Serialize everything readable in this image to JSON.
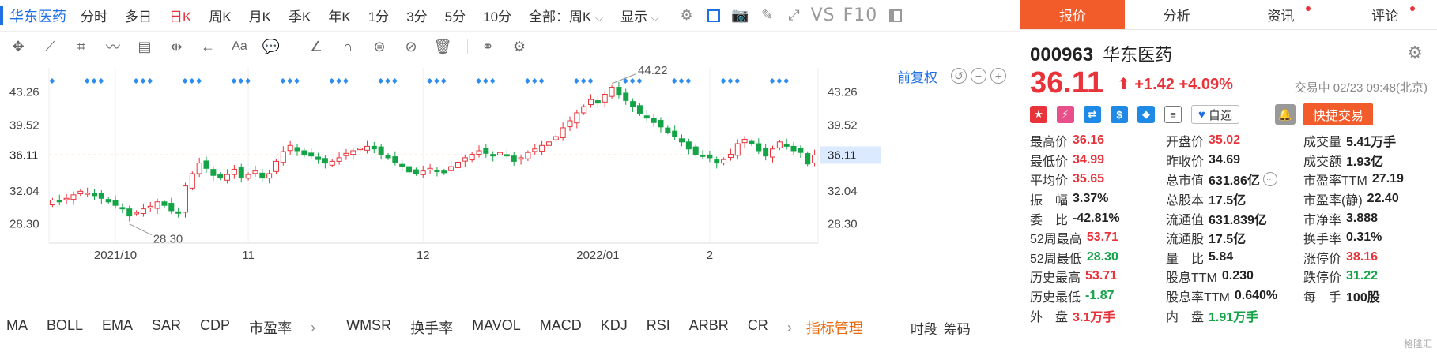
{
  "topbar": {
    "title": "华东医药",
    "timeframes": [
      {
        "label": "分时",
        "active": false
      },
      {
        "label": "多日",
        "active": false
      },
      {
        "label": "日K",
        "active": true
      },
      {
        "label": "周K",
        "active": false
      },
      {
        "label": "月K",
        "active": false
      },
      {
        "label": "季K",
        "active": false
      },
      {
        "label": "年K",
        "active": false
      },
      {
        "label": "1分",
        "active": false
      },
      {
        "label": "3分",
        "active": false
      },
      {
        "label": "5分",
        "active": false
      },
      {
        "label": "10分",
        "active": false
      }
    ],
    "range_select": "全部：周K",
    "display_select": "显示",
    "vs_label": "VS",
    "f10_label": "F10"
  },
  "chart_header": {
    "restore_label": "前复权"
  },
  "chart_data": {
    "type": "candlestick",
    "y_ticks": [
      43.26,
      39.52,
      36.11,
      32.04,
      28.3
    ],
    "ylim": [
      26.3,
      46.0
    ],
    "x_tick_labels": [
      "2021/10",
      "11",
      "12",
      "2022/01",
      "2"
    ],
    "x_tick_positions": [
      9,
      28,
      53,
      78,
      94
    ],
    "current_price": 36.11,
    "high_annotation": {
      "value": "44.22",
      "index": 80
    },
    "low_annotation": {
      "value": "28.30",
      "index": 11
    },
    "closes": [
      31.0,
      30.8,
      31.2,
      31.6,
      32.0,
      31.8,
      31.5,
      31.2,
      30.8,
      30.4,
      30.0,
      29.2,
      29.6,
      30.0,
      30.3,
      30.8,
      30.4,
      29.8,
      29.5,
      32.6,
      34.0,
      35.2,
      34.6,
      33.8,
      33.5,
      33.9,
      34.5,
      33.6,
      33.9,
      34.3,
      33.5,
      34.0,
      35.4,
      36.5,
      37.2,
      36.6,
      36.1,
      36.0,
      35.6,
      35.2,
      35.4,
      35.8,
      36.3,
      36.6,
      36.9,
      37.1,
      36.8,
      36.2,
      35.8,
      35.3,
      34.8,
      34.2,
      34.0,
      34.3,
      34.6,
      34.3,
      34.1,
      34.8,
      35.3,
      35.8,
      36.2,
      36.6,
      36.3,
      36.0,
      36.4,
      36.0,
      35.4,
      35.8,
      36.4,
      36.8,
      37.2,
      37.6,
      38.2,
      39.2,
      40.0,
      40.9,
      41.6,
      42.4,
      42.0,
      43.0,
      43.8,
      42.9,
      42.3,
      41.6,
      40.8,
      40.3,
      39.8,
      39.3,
      38.7,
      38.2,
      37.6,
      36.8,
      36.2,
      36.0,
      35.8,
      35.2,
      35.6,
      36.2,
      37.4,
      37.9,
      37.4,
      36.6,
      36.0,
      36.8,
      37.6,
      37.1,
      36.6,
      36.4,
      35.1,
      36.11
    ]
  },
  "indicators": {
    "items": [
      "MA",
      "BOLL",
      "EMA",
      "SAR",
      "CDP",
      "市盈率"
    ],
    "items2": [
      "WMSR",
      "换手率",
      "MAVOL",
      "MACD",
      "KDJ",
      "RSI",
      "ARBR",
      "CR"
    ],
    "manage_label": "指标管理",
    "right_labels": [
      "时段",
      "筹码"
    ]
  },
  "panel": {
    "tabs": [
      {
        "label": "报价",
        "active": true,
        "dot": false
      },
      {
        "label": "分析",
        "active": false,
        "dot": false
      },
      {
        "label": "资讯",
        "active": false,
        "dot": true
      },
      {
        "label": "评论",
        "active": false,
        "dot": true
      }
    ],
    "code": "000963",
    "name": "华东医药",
    "price": "36.11",
    "change": "+1.42",
    "change_pct": "+4.09%",
    "trade_status": "交易中 02/23 09:48(北京)",
    "fav_label": "自选",
    "quick_trade_label": "快捷交易",
    "colors": {
      "up": "#e8333a",
      "down": "#14a346",
      "accent": "#f25b2a",
      "link": "#1f6fe5"
    },
    "stats": [
      [
        {
          "label": "最高价",
          "value": "36.16",
          "tone": "red"
        },
        {
          "label": "开盘价",
          "value": "35.02",
          "tone": "red"
        },
        {
          "label": "成交量",
          "value": "5.41万手",
          "tone": ""
        }
      ],
      [
        {
          "label": "最低价",
          "value": "34.99",
          "tone": "red"
        },
        {
          "label": "昨收价",
          "value": "34.69",
          "tone": ""
        },
        {
          "label": "成交额",
          "value": "1.93亿",
          "tone": ""
        }
      ],
      [
        {
          "label": "平均价",
          "value": "35.65",
          "tone": "red"
        },
        {
          "label": "总市值",
          "value": "631.86亿",
          "tone": "",
          "more": true
        },
        {
          "label": "市盈率TTM",
          "value": "27.19",
          "tone": ""
        }
      ],
      [
        {
          "label": "振　幅",
          "value": "3.37%",
          "tone": ""
        },
        {
          "label": "总股本",
          "value": "17.5亿",
          "tone": ""
        },
        {
          "label": "市盈率(静)",
          "value": "22.40",
          "tone": ""
        }
      ],
      [
        {
          "label": "委　比",
          "value": "-42.81%",
          "tone": ""
        },
        {
          "label": "流通值",
          "value": "631.839亿",
          "tone": ""
        },
        {
          "label": "市净率",
          "value": "3.888",
          "tone": ""
        }
      ],
      [
        {
          "label": "52周最高",
          "value": "53.71",
          "tone": "red"
        },
        {
          "label": "流通股",
          "value": "17.5亿",
          "tone": ""
        },
        {
          "label": "换手率",
          "value": "0.31%",
          "tone": ""
        }
      ],
      [
        {
          "label": "52周最低",
          "value": "28.30",
          "tone": "green"
        },
        {
          "label": "量　比",
          "value": "5.84",
          "tone": ""
        },
        {
          "label": "涨停价",
          "value": "38.16",
          "tone": "red"
        }
      ],
      [
        {
          "label": "历史最高",
          "value": "53.71",
          "tone": "red"
        },
        {
          "label": "股息TTM",
          "value": "0.230",
          "tone": ""
        },
        {
          "label": "跌停价",
          "value": "31.22",
          "tone": "green"
        }
      ],
      [
        {
          "label": "历史最低",
          "value": "-1.87",
          "tone": "green"
        },
        {
          "label": "股息率TTM",
          "value": "0.640%",
          "tone": ""
        },
        {
          "label": "每　手",
          "value": "100股",
          "tone": ""
        }
      ],
      [
        {
          "label": "外　盘",
          "value": "3.1万手",
          "tone": "red"
        },
        {
          "label": "内　盘",
          "value": "1.91万手",
          "tone": "green"
        },
        {
          "label": "",
          "value": "",
          "tone": ""
        }
      ]
    ],
    "watermark": "格隆汇"
  }
}
